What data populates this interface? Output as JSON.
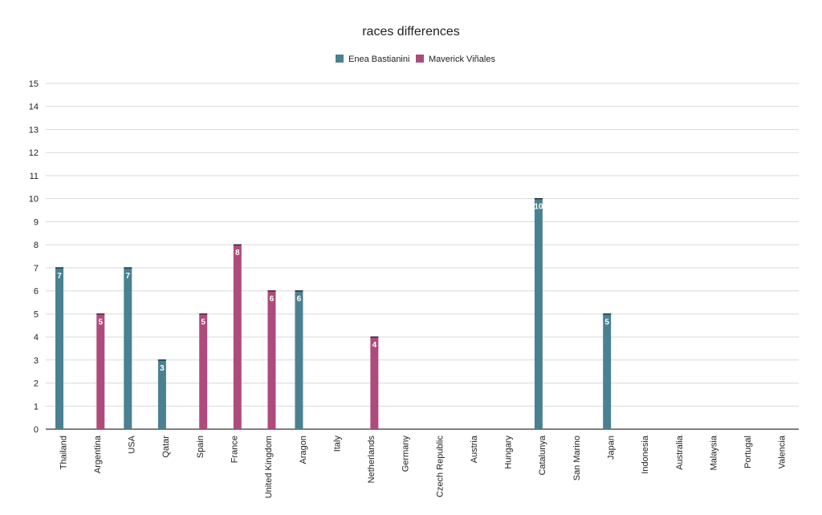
{
  "chart_data": {
    "type": "bar",
    "title": "races differences",
    "xlabel": "",
    "ylabel": "",
    "ylim": [
      0,
      15
    ],
    "yticks": [
      0,
      1,
      2,
      3,
      4,
      5,
      6,
      7,
      8,
      9,
      10,
      11,
      12,
      13,
      14,
      15
    ],
    "grid": true,
    "legend_position": "top-center",
    "categories": [
      "Thailand",
      "Argentina",
      "USA",
      "Qatar",
      "Spain",
      "France",
      "United Kingdom",
      "Aragon",
      "Italy",
      "Netherlands",
      "Germany",
      "Czech Republic",
      "Austria",
      "Hungary",
      "Catalunya",
      "San Marino",
      "Japan",
      "Indonesia",
      "Australia",
      "Malaysia",
      "Portugal",
      "Valencia"
    ],
    "series": [
      {
        "name": "Enea Bastianini",
        "color": "#4a8190",
        "values": [
          7,
          null,
          7,
          3,
          null,
          null,
          null,
          6,
          null,
          null,
          null,
          null,
          null,
          null,
          10,
          null,
          5,
          null,
          null,
          null,
          null,
          null
        ]
      },
      {
        "name": "Maverick Viñales",
        "color": "#ad4c7c",
        "values": [
          null,
          5,
          null,
          null,
          5,
          8,
          6,
          null,
          null,
          4,
          null,
          null,
          null,
          null,
          null,
          null,
          null,
          null,
          null,
          null,
          null,
          null
        ]
      }
    ]
  }
}
